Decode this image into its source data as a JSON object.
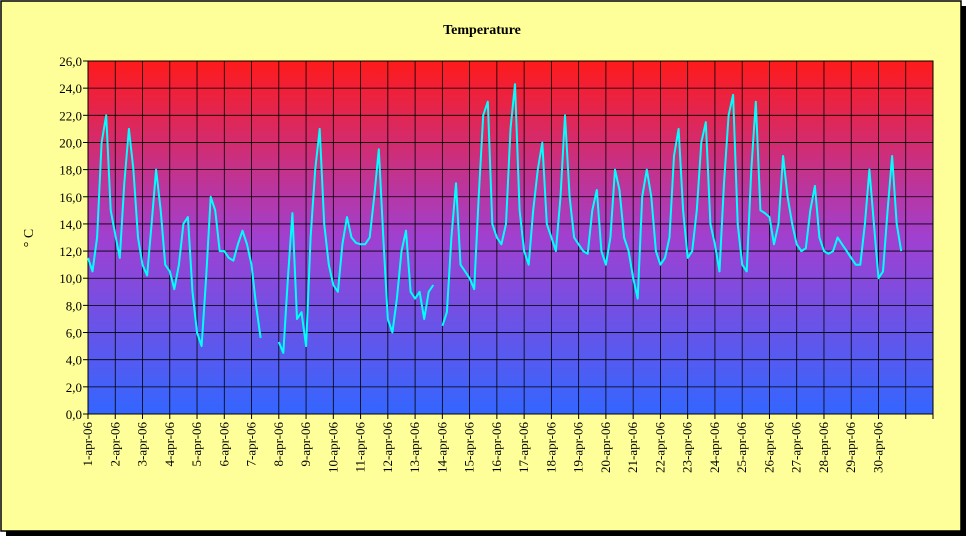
{
  "chart_data": {
    "type": "line",
    "title": "Temperature",
    "y_label": "° C",
    "categories": [
      "1-apr-06",
      null,
      null,
      null,
      null,
      null,
      "2-apr-06",
      null,
      null,
      null,
      null,
      null,
      "3-apr-06",
      null,
      null,
      null,
      null,
      null,
      "4-apr-06",
      null,
      null,
      null,
      null,
      null,
      "5-apr-06",
      null,
      null,
      null,
      null,
      null,
      "6-apr-06",
      null,
      null,
      null,
      null,
      null,
      "7-apr-06",
      null,
      null,
      null,
      null,
      null,
      "8-apr-06",
      null,
      null,
      null,
      null,
      null,
      "9-apr-06",
      null,
      null,
      null,
      null,
      null,
      "10-apr-06",
      null,
      null,
      null,
      null,
      null,
      "11-apr-06",
      null,
      null,
      null,
      null,
      null,
      "12-apr-06",
      null,
      null,
      null,
      null,
      null,
      "13-apr-06",
      null,
      null,
      null,
      null,
      null,
      "14-apr-06",
      null,
      null,
      null,
      null,
      null,
      "15-apr-06",
      null,
      null,
      null,
      null,
      null,
      "16-apr-06",
      null,
      null,
      null,
      null,
      null,
      "17-apr-06",
      null,
      null,
      null,
      null,
      null,
      "18-apr-06",
      null,
      null,
      null,
      null,
      null,
      "19-apr-06",
      null,
      null,
      null,
      null,
      null,
      "20-apr-06",
      null,
      null,
      null,
      null,
      null,
      "21-apr-06",
      null,
      null,
      null,
      null,
      null,
      "22-apr-06",
      null,
      null,
      null,
      null,
      null,
      "23-apr-06",
      null,
      null,
      null,
      null,
      null,
      "24-apr-06",
      null,
      null,
      null,
      null,
      null,
      "25-apr-06",
      null,
      null,
      null,
      null,
      null,
      "26-apr-06",
      null,
      null,
      null,
      null,
      null,
      "27-apr-06",
      null,
      null,
      null,
      null,
      null,
      "28-apr-06",
      null,
      null,
      null,
      null,
      null,
      "29-apr-06",
      null,
      null,
      null,
      null,
      null,
      "30-apr-06",
      null,
      null,
      null,
      null,
      null,
      null,
      null,
      null,
      null,
      null,
      null
    ],
    "series": [
      {
        "name": "Temperature",
        "color": "#00ffff",
        "values": [
          11.5,
          10.5,
          13,
          20,
          22,
          15,
          13.2,
          11.5,
          17,
          21,
          18,
          13,
          11,
          10.2,
          14,
          18,
          15,
          11,
          10.5,
          9.2,
          11,
          14,
          14.5,
          9,
          6,
          5,
          10,
          16,
          15,
          12,
          12,
          11.5,
          11.3,
          12.5,
          13.5,
          12.5,
          11,
          8,
          5.6,
          null,
          null,
          null,
          5.3,
          4.5,
          10,
          14.8,
          7,
          7.5,
          5,
          13,
          18,
          21,
          14,
          11,
          9.5,
          9,
          12.5,
          14.5,
          13,
          12.6,
          12.5,
          12.5,
          13,
          16,
          19.5,
          13,
          7,
          6,
          8.5,
          12,
          13.5,
          9,
          8.5,
          9,
          7,
          9,
          9.5,
          null,
          6.5,
          7.5,
          13,
          17,
          11,
          10.5,
          10,
          9.2,
          16,
          22,
          23,
          14,
          13,
          12.5,
          14,
          21,
          24.3,
          15,
          12,
          11,
          15,
          18,
          20,
          14,
          13,
          12,
          16,
          22,
          16,
          13,
          12.5,
          12,
          11.8,
          15,
          16.5,
          12,
          11,
          13,
          18,
          16.5,
          13,
          12,
          10,
          8.5,
          16,
          18,
          16,
          12,
          11,
          11.5,
          13,
          19,
          21,
          15,
          11.5,
          12,
          15,
          20,
          21.5,
          14,
          12.5,
          10.5,
          17,
          22,
          23.5,
          14,
          11,
          10.5,
          18,
          23,
          15,
          14.8,
          14.5,
          12.5,
          14,
          19,
          16,
          14,
          12.5,
          12,
          12.2,
          15,
          16.8,
          13,
          12,
          11.8,
          12,
          13,
          12.5,
          12,
          11.5,
          11,
          11,
          14,
          18,
          14,
          10,
          10.5,
          15,
          19,
          14,
          12,
          null,
          null,
          null,
          null,
          null,
          null
        ]
      }
    ],
    "ylim": [
      0,
      26
    ],
    "yticks": [
      {
        "value": 0,
        "label": "0,0"
      },
      {
        "value": 2,
        "label": "2,0"
      },
      {
        "value": 4,
        "label": "4,0"
      },
      {
        "value": 6,
        "label": "6,0"
      },
      {
        "value": 8,
        "label": "8,0"
      },
      {
        "value": 10,
        "label": "10,0"
      },
      {
        "value": 12,
        "label": "12,0"
      },
      {
        "value": 14,
        "label": "14,0"
      },
      {
        "value": 16,
        "label": "16,0"
      },
      {
        "value": 18,
        "label": "18,0"
      },
      {
        "value": 20,
        "label": "20,0"
      },
      {
        "value": 22,
        "label": "22,0"
      },
      {
        "value": 24,
        "label": "24,0"
      },
      {
        "value": 26,
        "label": "26,0"
      }
    ],
    "grid": true
  }
}
